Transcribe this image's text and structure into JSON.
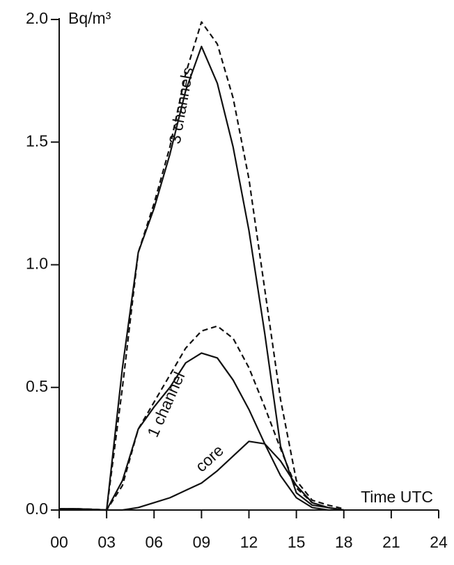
{
  "chart_data": {
    "type": "line",
    "y_label": "Bq/m³",
    "x_label": "Time UTC",
    "x": [
      0,
      1,
      2,
      3,
      4,
      5,
      6,
      7,
      8,
      9,
      10,
      11,
      12,
      13,
      14,
      15,
      16,
      17,
      18
    ],
    "series": [
      {
        "color": "#111111",
        "dash": true,
        "values": [
          0.005,
          0.005,
          0.003,
          0,
          0.5,
          1.05,
          1.25,
          1.48,
          1.78,
          1.99,
          1.9,
          1.68,
          1.35,
          0.9,
          0.45,
          0.12,
          0.04,
          0.02,
          0.005
        ]
      },
      {
        "color": "#111111",
        "dash": false,
        "values": [
          0.005,
          0.005,
          0.003,
          0,
          0.58,
          1.05,
          1.23,
          1.45,
          1.71,
          1.89,
          1.74,
          1.48,
          1.14,
          0.72,
          0.26,
          0.07,
          0.02,
          0.01,
          0
        ]
      },
      {
        "color": "#111111",
        "dash": true,
        "values": [
          0.005,
          0.005,
          0.003,
          0,
          0.1,
          0.33,
          0.44,
          0.55,
          0.66,
          0.73,
          0.75,
          0.7,
          0.58,
          0.42,
          0.25,
          0.09,
          0.03,
          0.01,
          0
        ]
      },
      {
        "color": "#111111",
        "dash": false,
        "values": [
          0.005,
          0.005,
          0.003,
          0,
          0.12,
          0.33,
          0.42,
          0.5,
          0.6,
          0.64,
          0.62,
          0.53,
          0.41,
          0.27,
          0.14,
          0.05,
          0.01,
          0,
          0
        ]
      },
      {
        "color": "#111111",
        "dash": false,
        "values": [
          0,
          0,
          0,
          0,
          0,
          0.01,
          0.03,
          0.05,
          0.08,
          0.11,
          0.16,
          0.22,
          0.28,
          0.27,
          0.2,
          0.1,
          0.03,
          0.01,
          0
        ]
      }
    ],
    "annotations": [
      "3 channels",
      "1 channel",
      "core"
    ],
    "xlim": [
      0,
      24
    ],
    "xticks": [
      {
        "value": 0,
        "label": "00"
      },
      {
        "value": 3,
        "label": "03"
      },
      {
        "value": 6,
        "label": "06"
      },
      {
        "value": 9,
        "label": "09"
      },
      12,
      15,
      18,
      21,
      24
    ],
    "ylim": [
      0,
      2
    ],
    "yticks": [
      {
        "value": 0,
        "label": "0.0"
      },
      0.5,
      {
        "value": 1,
        "label": "1.0"
      },
      1.5,
      {
        "value": 2,
        "label": "2.0"
      }
    ]
  }
}
